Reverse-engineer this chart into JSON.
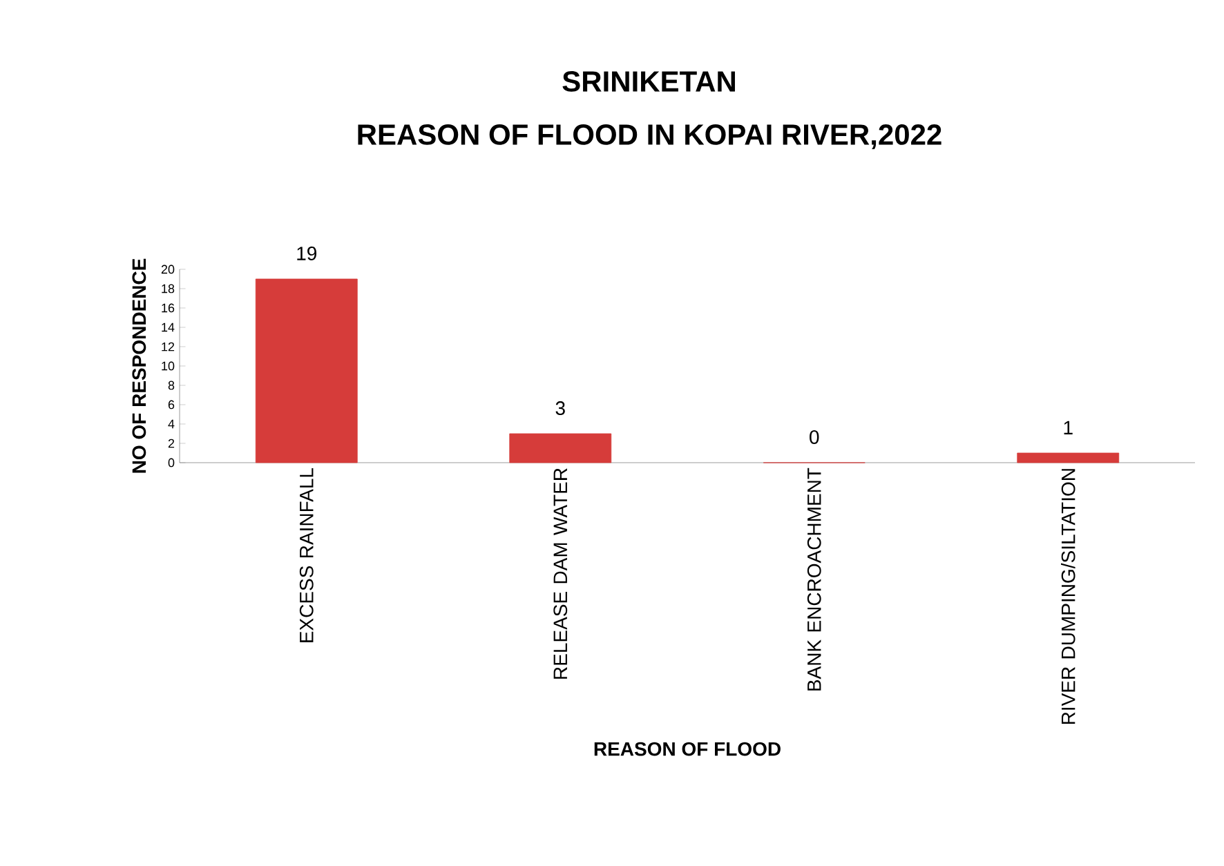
{
  "chart_data": {
    "type": "bar",
    "title": "SRINIKETAN",
    "subtitle": "REASON OF FLOOD IN KOPAI RIVER,2022",
    "xlabel": "REASON OF FLOOD",
    "ylabel": "NO OF RESPONDENCE",
    "categories": [
      "EXCESS RAINFALL",
      "RELEASE DAM WATER",
      "BANK ENCROACHMENT",
      "RIVER DUMPING/SILTATION"
    ],
    "values": [
      19,
      3,
      0,
      1
    ],
    "color": "#d63c3a",
    "data_labels": true,
    "ylim": [
      0,
      20
    ],
    "yticks": [
      0,
      2,
      4,
      6,
      8,
      10,
      12,
      14,
      16,
      18,
      20
    ]
  }
}
